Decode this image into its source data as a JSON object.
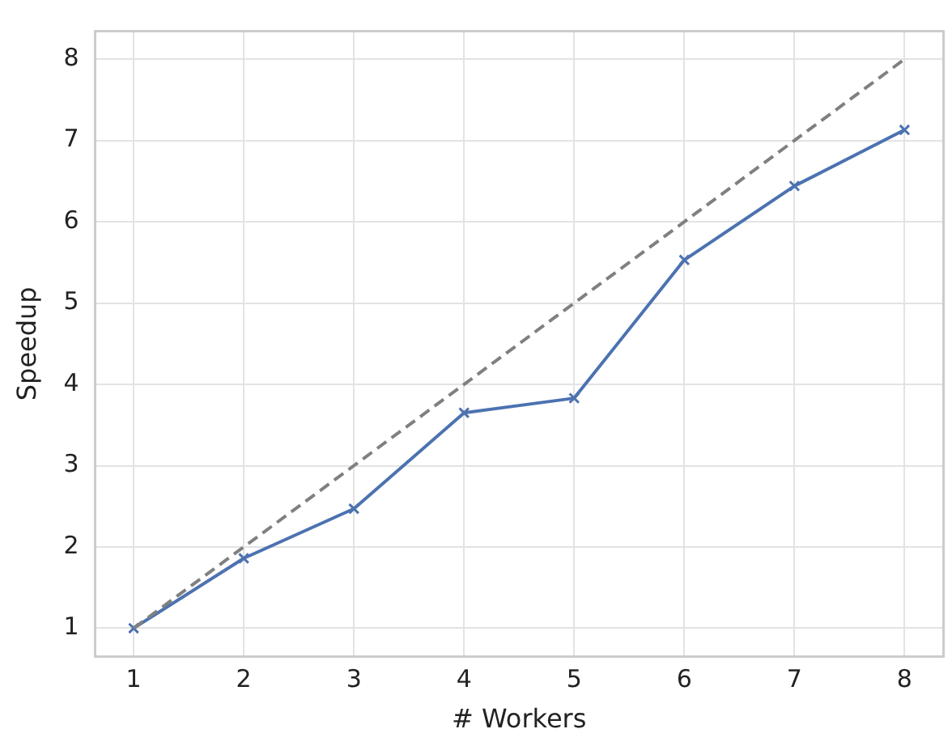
{
  "chart_data": {
    "type": "line",
    "xlabel": "# Workers",
    "ylabel": "Speedup",
    "x": [
      1,
      2,
      3,
      4,
      5,
      6,
      7,
      8
    ],
    "series": [
      {
        "color": "#808080",
        "values": [
          1,
          2,
          3,
          4,
          5,
          6,
          7,
          8
        ],
        "line_style": "dashed",
        "marker": "none"
      },
      {
        "color": "#4c72b0",
        "values": [
          1,
          1.86,
          2.47,
          3.65,
          3.83,
          5.53,
          6.44,
          7.13
        ],
        "line_style": "solid",
        "marker": "cross"
      }
    ],
    "xlim": [
      0.65,
      8.35
    ],
    "xticks": [
      1,
      2,
      3,
      4,
      5,
      6,
      7,
      8
    ],
    "ylim": [
      0.65,
      8.35
    ],
    "yticks": [
      1,
      2,
      3,
      4,
      5,
      6,
      7,
      8
    ],
    "grid": true,
    "legend": false
  }
}
